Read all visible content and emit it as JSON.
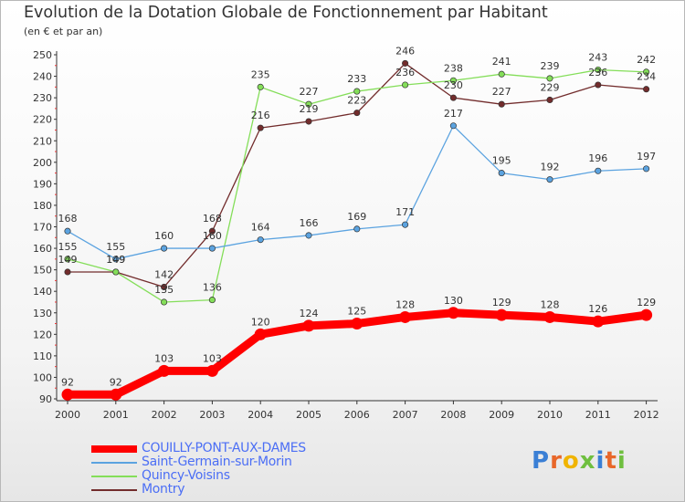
{
  "title": "Evolution de la Dotation Globale de Fonctionnement par Habitant",
  "subtitle": "(en € et par an)",
  "logo": {
    "text": "Proxiti",
    "letters": [
      "P",
      "r",
      "o",
      "x",
      "i",
      "t",
      "i"
    ],
    "colors": [
      "#3a7fd5",
      "#e8672a",
      "#f0b400",
      "#6fbf3f",
      "#3a7fd5",
      "#e8672a",
      "#6fbf3f"
    ]
  },
  "chart_data": {
    "type": "line",
    "title": "Evolution de la Dotation Globale de Fonctionnement par Habitant",
    "subtitle": "(en € et par an)",
    "xlabel": "",
    "ylabel": "",
    "ylim": [
      90,
      250
    ],
    "yticks": [
      90,
      100,
      110,
      120,
      130,
      140,
      150,
      160,
      170,
      180,
      190,
      200,
      210,
      220,
      230,
      240,
      250
    ],
    "categories": [
      "2000",
      "2001",
      "2002",
      "2003",
      "2004",
      "2005",
      "2006",
      "2007",
      "2008",
      "2009",
      "2010",
      "2011",
      "2012"
    ],
    "grid": false,
    "legend_position": "bottom-left",
    "series": [
      {
        "name": "COUILLY-PONT-AUX-DAMES",
        "color": "#ff0000",
        "values": [
          92,
          92,
          103,
          103,
          120,
          124,
          125,
          128,
          130,
          129,
          128,
          126,
          129
        ]
      },
      {
        "name": "Saint-Germain-sur-Morin",
        "color": "#5ba3e0",
        "values": [
          168,
          155,
          160,
          160,
          164,
          166,
          169,
          171,
          217,
          195,
          192,
          196,
          197
        ]
      },
      {
        "name": "Quincy-Voisins",
        "color": "#84de59",
        "values": [
          155,
          149,
          135,
          136,
          235,
          227,
          233,
          236,
          238,
          241,
          239,
          243,
          242
        ]
      },
      {
        "name": "Montry",
        "color": "#722c2c",
        "values": [
          149,
          149,
          142,
          168,
          216,
          219,
          223,
          246,
          230,
          227,
          229,
          236,
          234
        ]
      }
    ]
  }
}
